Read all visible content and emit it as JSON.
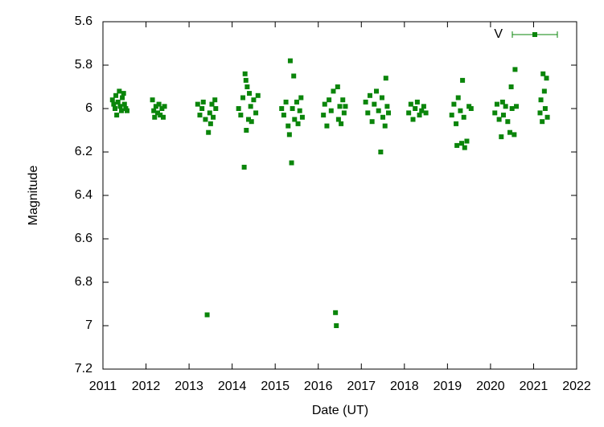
{
  "chart_data": {
    "type": "scatter",
    "x_label": "Date (UT)",
    "y_label": "Magnitude",
    "xlim": [
      2011,
      2022
    ],
    "xticks": [
      2011,
      2012,
      2013,
      2014,
      2015,
      2016,
      2017,
      2018,
      2019,
      2020,
      2021,
      2022
    ],
    "ylim": [
      7.2,
      5.6
    ],
    "yticks": [
      5.6,
      5.8,
      6,
      6.2,
      6.4,
      6.6,
      6.8,
      7,
      7.2
    ],
    "legend": "top-right",
    "series": [
      {
        "name": "V",
        "color": "#0a850a",
        "x": [
          2011.22,
          2011.25,
          2011.28,
          2011.3,
          2011.32,
          2011.35,
          2011.38,
          2011.4,
          2011.43,
          2011.45,
          2011.48,
          2011.5,
          2011.53,
          2011.56,
          2012.15,
          2012.18,
          2012.2,
          2012.23,
          2012.27,
          2012.3,
          2012.33,
          2012.37,
          2012.4,
          2012.43,
          2013.2,
          2013.25,
          2013.3,
          2013.33,
          2013.38,
          2013.42,
          2013.45,
          2013.48,
          2013.5,
          2013.53,
          2013.56,
          2013.6,
          2013.62,
          2014.15,
          2014.2,
          2014.25,
          2014.28,
          2014.3,
          2014.32,
          2014.33,
          2014.35,
          2014.38,
          2014.4,
          2014.43,
          2014.45,
          2014.5,
          2014.55,
          2014.6,
          2015.15,
          2015.2,
          2015.25,
          2015.3,
          2015.33,
          2015.35,
          2015.38,
          2015.4,
          2015.43,
          2015.45,
          2015.5,
          2015.53,
          2015.57,
          2015.6,
          2015.63,
          2016.12,
          2016.15,
          2016.2,
          2016.25,
          2016.3,
          2016.35,
          2016.4,
          2016.42,
          2016.45,
          2016.47,
          2016.5,
          2016.53,
          2016.57,
          2016.6,
          2016.63,
          2017.1,
          2017.15,
          2017.2,
          2017.25,
          2017.3,
          2017.35,
          2017.4,
          2017.45,
          2017.48,
          2017.5,
          2017.55,
          2017.57,
          2017.6,
          2017.63,
          2018.1,
          2018.15,
          2018.2,
          2018.25,
          2018.3,
          2018.35,
          2018.4,
          2018.45,
          2018.5,
          2019.1,
          2019.15,
          2019.2,
          2019.22,
          2019.25,
          2019.3,
          2019.33,
          2019.35,
          2019.38,
          2019.4,
          2019.45,
          2019.5,
          2019.55,
          2020.1,
          2020.15,
          2020.2,
          2020.25,
          2020.28,
          2020.3,
          2020.35,
          2020.4,
          2020.45,
          2020.48,
          2020.5,
          2020.55,
          2020.57,
          2020.6,
          2021.15,
          2021.17,
          2021.2,
          2021.22,
          2021.25,
          2021.27,
          2021.3,
          2021.32
        ],
        "values": [
          5.96,
          5.98,
          6.0,
          5.94,
          6.03,
          5.97,
          5.92,
          5.99,
          6.01,
          5.95,
          5.93,
          5.98,
          6.0,
          6.01,
          5.96,
          6.01,
          6.04,
          5.99,
          6.02,
          5.98,
          6.03,
          6.0,
          6.04,
          5.99,
          5.98,
          6.03,
          6.0,
          5.97,
          6.05,
          6.95,
          6.11,
          6.02,
          6.07,
          5.98,
          6.04,
          5.96,
          6.0,
          6.0,
          6.03,
          5.95,
          6.27,
          5.84,
          5.87,
          6.1,
          5.9,
          6.05,
          5.93,
          5.99,
          6.06,
          5.96,
          6.02,
          5.94,
          6.0,
          6.03,
          5.97,
          6.08,
          6.12,
          5.78,
          6.25,
          6.0,
          5.85,
          6.05,
          5.97,
          6.07,
          6.01,
          5.95,
          6.04,
          6.03,
          5.98,
          6.08,
          5.96,
          6.01,
          5.92,
          6.94,
          7.0,
          5.9,
          6.05,
          5.99,
          6.07,
          5.96,
          6.02,
          5.99,
          5.97,
          6.02,
          5.94,
          6.06,
          5.98,
          5.92,
          6.01,
          6.2,
          5.95,
          6.04,
          6.08,
          5.86,
          5.99,
          6.02,
          6.02,
          5.98,
          6.05,
          6.0,
          5.97,
          6.03,
          6.01,
          5.99,
          6.02,
          6.03,
          5.98,
          6.07,
          6.17,
          5.95,
          6.01,
          6.16,
          5.87,
          6.04,
          6.18,
          6.15,
          5.99,
          6.0,
          6.02,
          5.98,
          6.05,
          6.13,
          5.97,
          6.03,
          5.99,
          6.06,
          6.11,
          5.9,
          6.0,
          6.12,
          5.82,
          5.99,
          6.02,
          5.96,
          6.06,
          5.84,
          5.92,
          6.0,
          5.86,
          6.04
        ]
      }
    ]
  }
}
